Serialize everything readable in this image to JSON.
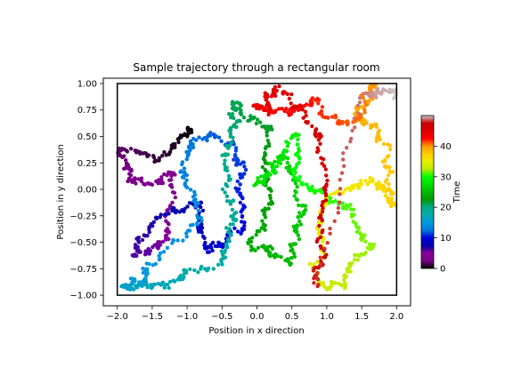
{
  "chart_data": {
    "type": "scatter",
    "title": "Sample trajectory through a rectangular room",
    "xlabel": "Position in x direction",
    "ylabel": "Position in y direction",
    "xlim": [
      -2.2,
      2.2
    ],
    "ylim": [
      -1.1,
      1.05
    ],
    "xticks": [
      "−2.0",
      "−1.5",
      "−1.0",
      "−0.5",
      "0.0",
      "0.5",
      "1.0",
      "1.5",
      "2.0"
    ],
    "xtick_values": [
      -2.0,
      -1.5,
      -1.0,
      -0.5,
      0.0,
      0.5,
      1.0,
      1.5,
      2.0
    ],
    "yticks": [
      "1.00",
      "0.75",
      "0.50",
      "0.25",
      "0.00",
      "−0.25",
      "−0.50",
      "−0.75",
      "−1.00"
    ],
    "ytick_values": [
      1.0,
      0.75,
      0.5,
      0.25,
      0.0,
      -0.25,
      -0.5,
      -0.75,
      -1.0
    ],
    "room": {
      "x": [
        -2.0,
        2.0
      ],
      "y": [
        -1.0,
        1.0
      ]
    },
    "grid": false,
    "colormap": "nipy_spectral",
    "colorbar": {
      "label": "Time",
      "range": [
        0,
        50
      ],
      "ticks": [
        "0",
        "10",
        "20",
        "30",
        "40"
      ],
      "tick_values": [
        0,
        10,
        20,
        30,
        40
      ]
    },
    "trajectory": {
      "time_range": [
        0,
        50
      ],
      "waypoints": [
        [
          -0.95,
          0.55
        ],
        [
          -1.4,
          0.35
        ],
        [
          -1.95,
          0.3
        ],
        [
          -1.7,
          0.05
        ],
        [
          -1.2,
          0.1
        ],
        [
          -1.3,
          -0.5
        ],
        [
          -1.75,
          -0.6
        ],
        [
          -1.45,
          -0.3
        ],
        [
          -0.9,
          -0.1
        ],
        [
          -0.7,
          -0.6
        ],
        [
          -0.3,
          -0.4
        ],
        [
          -0.25,
          0.2
        ],
        [
          -0.6,
          0.55
        ],
        [
          -1.05,
          0.3
        ],
        [
          -0.8,
          -0.25
        ],
        [
          -1.6,
          -0.8
        ],
        [
          -1.9,
          -0.95
        ],
        [
          -1.3,
          -0.9
        ],
        [
          -0.55,
          -0.7
        ],
        [
          -0.35,
          -0.2
        ],
        [
          -0.45,
          0.45
        ],
        [
          -0.25,
          0.85
        ],
        [
          0.15,
          0.5
        ],
        [
          0.1,
          -0.1
        ],
        [
          -0.1,
          -0.55
        ],
        [
          0.45,
          -0.65
        ],
        [
          0.7,
          -0.2
        ],
        [
          0.35,
          0.3
        ],
        [
          0.05,
          0.05
        ],
        [
          0.55,
          0.55
        ],
        [
          0.7,
          0.0
        ],
        [
          1.3,
          -0.2
        ],
        [
          1.65,
          -0.55
        ],
        [
          1.2,
          -0.95
        ],
        [
          0.8,
          -0.75
        ],
        [
          1.05,
          -0.15
        ],
        [
          1.7,
          0.1
        ],
        [
          1.95,
          -0.2
        ],
        [
          1.8,
          0.45
        ],
        [
          1.4,
          0.7
        ],
        [
          1.75,
          0.95
        ],
        [
          1.2,
          0.6
        ],
        [
          0.8,
          0.85
        ],
        [
          0.45,
          0.7
        ],
        [
          -0.05,
          0.75
        ],
        [
          0.3,
          0.95
        ],
        [
          0.9,
          0.45
        ],
        [
          0.95,
          -0.3
        ],
        [
          0.9,
          -0.9
        ],
        [
          1.55,
          0.95
        ],
        [
          1.95,
          0.9
        ]
      ],
      "point_count": 1500
    }
  }
}
